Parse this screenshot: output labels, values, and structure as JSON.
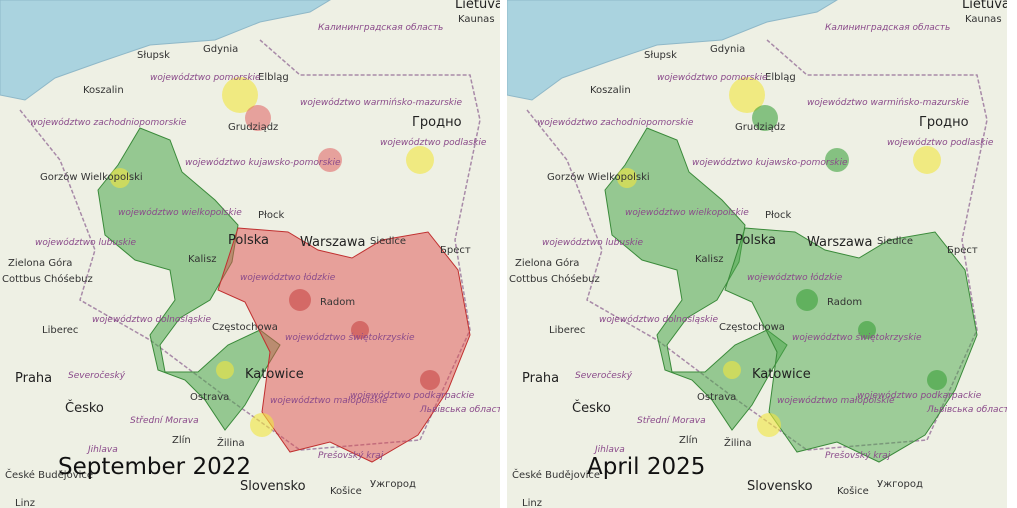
{
  "panels": [
    {
      "caption": "September 2022"
    },
    {
      "caption": "April 2025"
    }
  ],
  "places": [
    "Lietuva",
    "Kaunas",
    "Калининградская область",
    "Słupsk",
    "Gdynia",
    "Elbląg",
    "Koszalin",
    "województwo pomorskie",
    "Grudziądz",
    "województwo warmińsko-mazurskie",
    "Гродно",
    "województwo zachodniopomorskie",
    "województwo kujawsko-pomorskie",
    "województwo podlaskie",
    "Gorzów Wielkopolski",
    "Płock",
    "Warszawa",
    "województwo wielkopolskie",
    "województwo lubuskie",
    "Polska",
    "Siedlce",
    "Брест",
    "Kalisz",
    "Zielona Góra",
    "Cottbus Chóśebuz",
    "województwo łódzkie",
    "Radom",
    "Liberec",
    "województwo dolnośląskie",
    "Częstochowa",
    "województwo świętokrzyskie",
    "Praha",
    "Severočeský",
    "Katowice",
    "Ostrava",
    "Česko",
    "Střední Morava",
    "województwo małopolskie",
    "województwo podkarpackie",
    "Львівська область",
    "Jihlava",
    "Zlín",
    "Žilina",
    "Prešovský kraj",
    "České Budějovice",
    "Slovensko",
    "Košice",
    "Ужгород",
    "Linz"
  ]
}
